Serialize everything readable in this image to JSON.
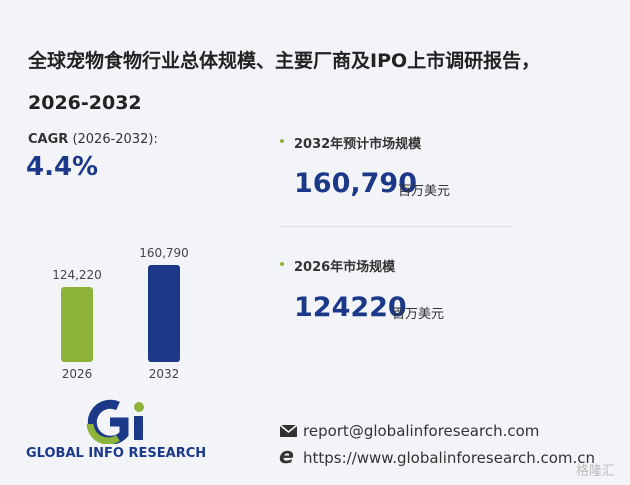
{
  "header": {
    "title": "全球宠物食物行业总体规模、主要厂商及IPO上市调研报告，2026-2032"
  },
  "cagr": {
    "label": "CAGR",
    "period": "(2026-2032):",
    "value": "4.4%"
  },
  "stats": [
    {
      "label": "2032年预计市场规模",
      "value": "160,790",
      "unit": "百万美元"
    },
    {
      "label": "2026年市场规模",
      "value": "124220",
      "unit": "百万美元"
    }
  ],
  "chart_data": {
    "type": "bar",
    "categories": [
      "2026",
      "2032"
    ],
    "values": [
      124220,
      160790
    ],
    "value_labels": [
      "124,220",
      "160,790"
    ],
    "series_colors": [
      "#8db33a",
      "#1c3989"
    ]
  },
  "logo": {
    "text": "GLOBAL INFO RESEARCH"
  },
  "contact": {
    "email": "report@globalinforesearch.com",
    "website": "https://www.globalinforesearch.com.cn"
  },
  "watermark": "格隆汇"
}
